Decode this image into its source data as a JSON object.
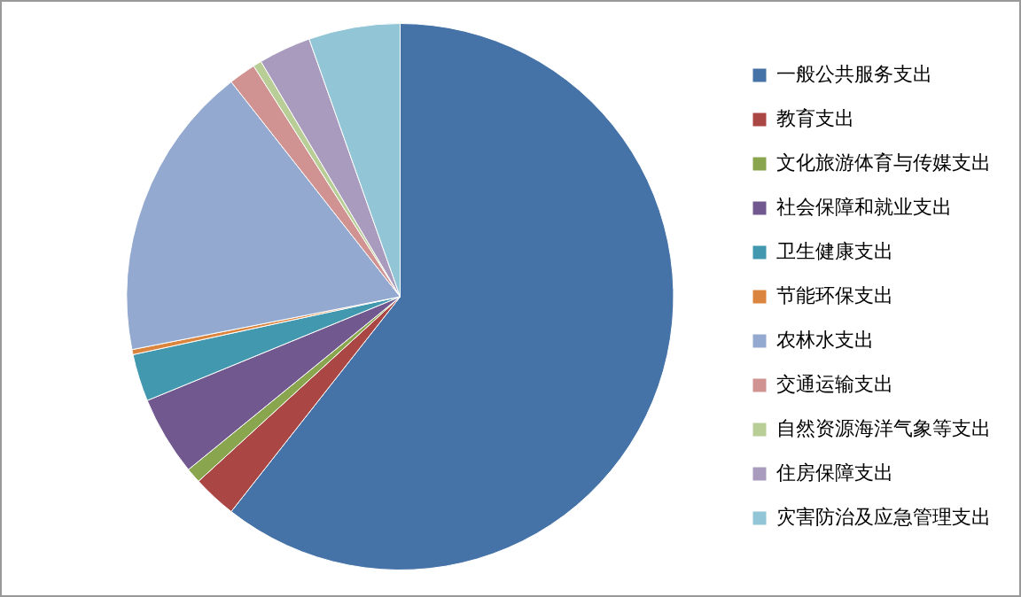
{
  "chart_data": {
    "type": "pie",
    "categories": [
      "一般公共服务支出",
      "教育支出",
      "文化旅游体育与传媒支出",
      "社会保障和就业支出",
      "卫生健康支出",
      "节能环保支出",
      "农林水支出",
      "交通运输支出",
      "自然资源海洋气象等支出",
      "住房保障支出",
      "灾害防治及应急管理支出"
    ],
    "values": [
      60.6,
      2.6,
      0.9,
      4.7,
      2.8,
      0.3,
      17.5,
      1.6,
      0.5,
      3.1,
      5.4
    ],
    "colors": [
      "#4572a7",
      "#aa4643",
      "#89a54e",
      "#71588f",
      "#4198af",
      "#db843d",
      "#93a9cf",
      "#d19392",
      "#b9cd96",
      "#a99bbd",
      "#92c5d6"
    ],
    "legend": "right"
  }
}
